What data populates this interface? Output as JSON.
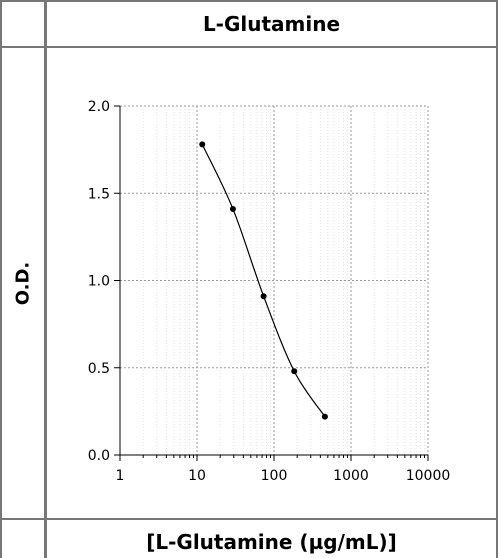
{
  "chart_data": {
    "type": "scatter",
    "title": "L-Glutamine",
    "xlabel": "[L-Glutamine (µg/mL)]",
    "ylabel": "O.D.",
    "xscale": "log",
    "xlim": [
      1,
      10000
    ],
    "ylim": [
      0,
      2
    ],
    "xticks": [
      "1",
      "10",
      "100",
      "1000",
      "10000"
    ],
    "yticks": [
      "0.0",
      "0.5",
      "1.0",
      "1.5",
      "2.0"
    ],
    "grid": true,
    "fit_curve": true,
    "series": [
      {
        "x": [
          11.7,
          29.3,
          73.3,
          183,
          458
        ],
        "y": [
          1.78,
          1.41,
          0.91,
          0.48,
          0.22
        ]
      }
    ]
  }
}
